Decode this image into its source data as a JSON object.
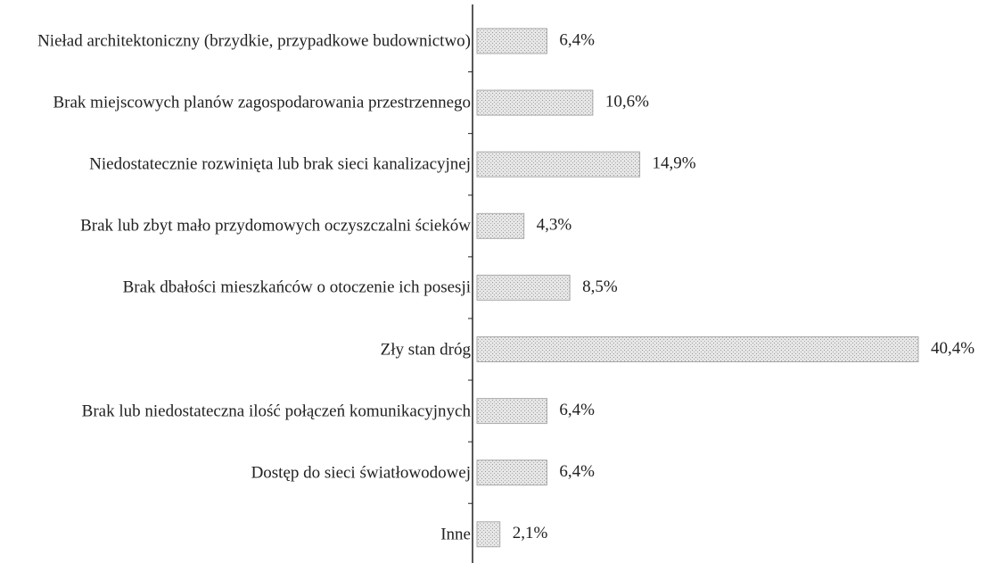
{
  "chart_data": {
    "type": "bar",
    "orientation": "horizontal",
    "categories": [
      "Nieład architektoniczny (brzydkie, przypadkowe budownictwo)",
      "Brak miejscowych planów zagospodarowania przestrzennego",
      "Niedostatecznie rozwinięta lub brak sieci kanalizacyjnej",
      "Brak lub zbyt mało przydomowych oczyszczalni ścieków",
      "Brak dbałości mieszkańców o otoczenie ich posesji",
      "Zły stan dróg",
      "Brak lub niedostateczna ilość połączeń komunikacyjnych",
      "Dostęp do sieci światłowodowej",
      "Inne"
    ],
    "values": [
      6.4,
      10.6,
      14.9,
      4.3,
      8.5,
      40.4,
      6.4,
      6.4,
      2.1
    ],
    "value_labels": [
      "6,4%",
      "10,6%",
      "14,9%",
      "4,3%",
      "8,5%",
      "40,4%",
      "6,4%",
      "6,4%",
      "2,1%"
    ],
    "xlim": [
      0,
      40.4
    ],
    "color": "#d4d4d4"
  }
}
